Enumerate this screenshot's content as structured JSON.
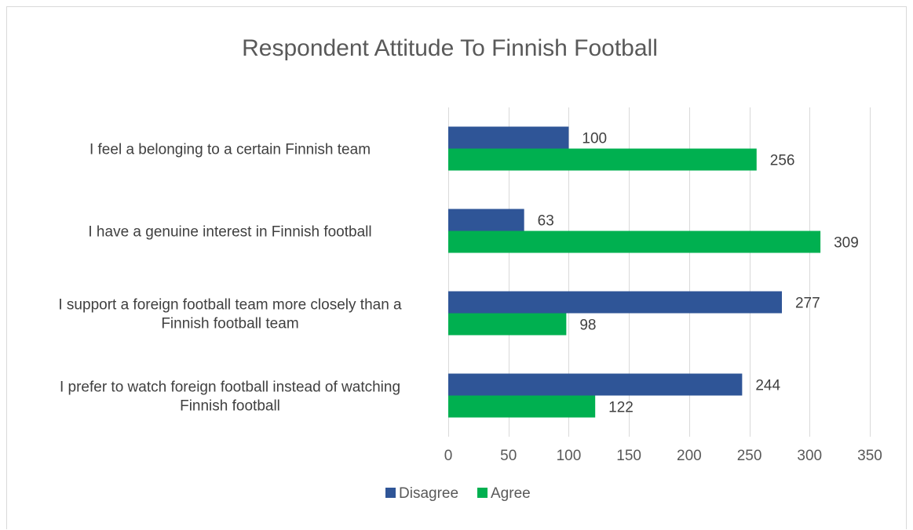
{
  "chart_data": {
    "type": "bar",
    "orientation": "horizontal",
    "title": "Respondent Attitude To Finnish Football",
    "categories": [
      [
        "I feel a belonging to a certain Finnish team"
      ],
      [
        "I have a genuine interest in Finnish football"
      ],
      [
        "I support a foreign football team more closely than a",
        "Finnish football team"
      ],
      [
        "I prefer to watch foreign football instead of watching",
        "Finnish football"
      ]
    ],
    "series": [
      {
        "name": "Disagree",
        "color": "#2f5597",
        "values": [
          100,
          63,
          277,
          244
        ]
      },
      {
        "name": "Agree",
        "color": "#00b050",
        "values": [
          256,
          309,
          98,
          122
        ]
      }
    ],
    "xlim": [
      0,
      350
    ],
    "xticks": [
      0,
      50,
      100,
      150,
      200,
      250,
      300,
      350
    ],
    "grid": true,
    "legend_position": "bottom"
  }
}
